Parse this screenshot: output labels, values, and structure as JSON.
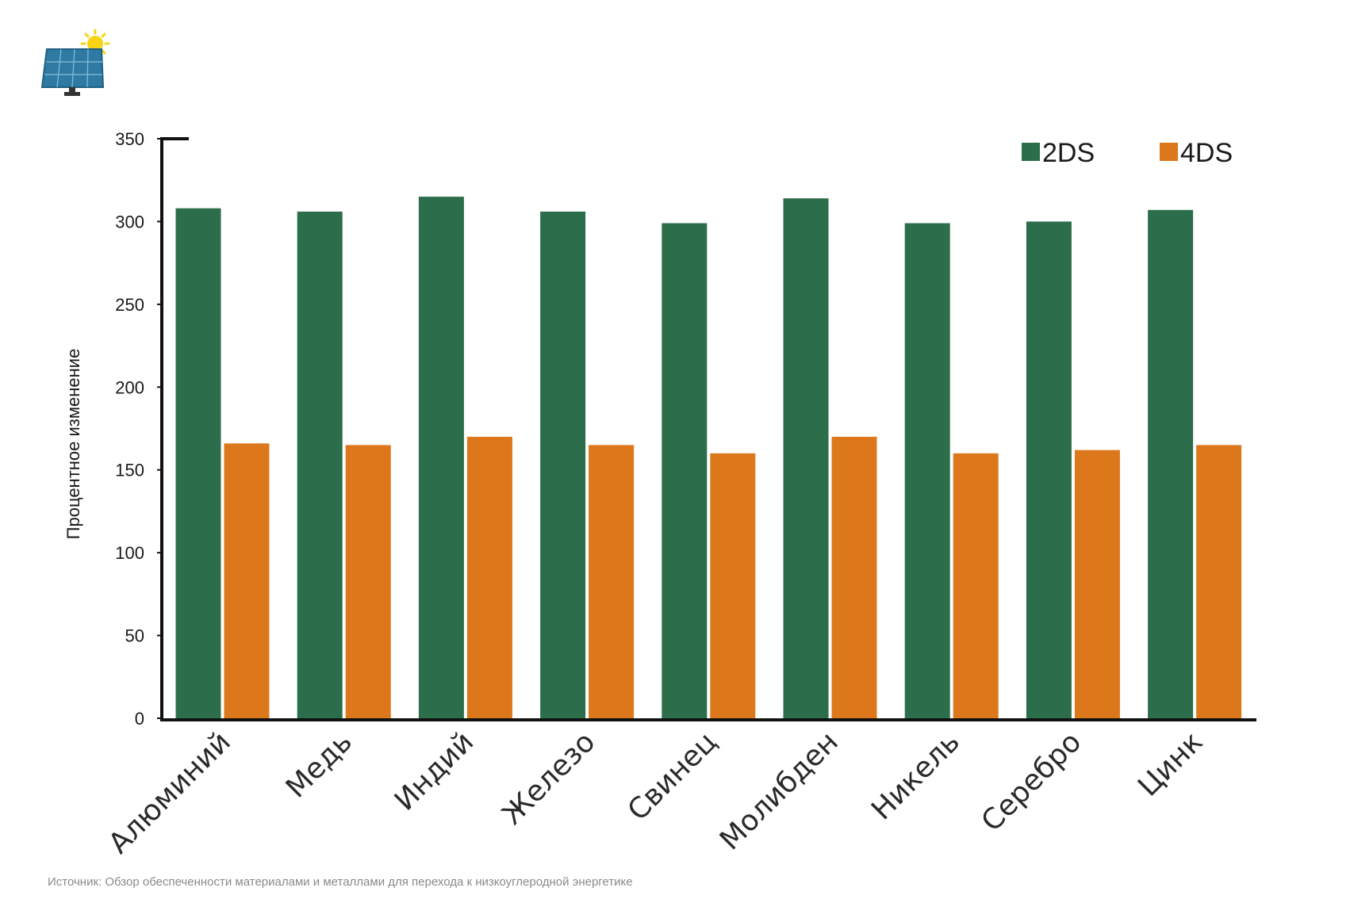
{
  "colors": {
    "series_2ds": "#2c6e4b",
    "series_4ds": "#dd771b",
    "axis": "#111111",
    "panel": "#2e7aa3",
    "sun": "#f7d414"
  },
  "icon": "solar-panel-sun-icon",
  "source": "Источник: Обзор обеспеченности материалами и металлами для перехода к низкоуглеродной энергетике",
  "chart_data": {
    "type": "bar",
    "title": "",
    "xlabel": "",
    "ylabel": "Процентное изменение",
    "ylim": [
      0,
      350
    ],
    "yticks": [
      0,
      50,
      100,
      150,
      200,
      250,
      300,
      350
    ],
    "legend_position": "top-right",
    "grid": false,
    "categories": [
      "Алюминий",
      "Медь",
      "Индий",
      "Железо",
      "Свинец",
      "Молибден",
      "Никель",
      "Серебро",
      "Цинк"
    ],
    "series": [
      {
        "name": "2DS",
        "values": [
          308,
          306,
          315,
          306,
          299,
          314,
          299,
          300,
          307
        ]
      },
      {
        "name": "4DS",
        "values": [
          166,
          165,
          170,
          165,
          160,
          170,
          160,
          162,
          165
        ]
      }
    ]
  }
}
